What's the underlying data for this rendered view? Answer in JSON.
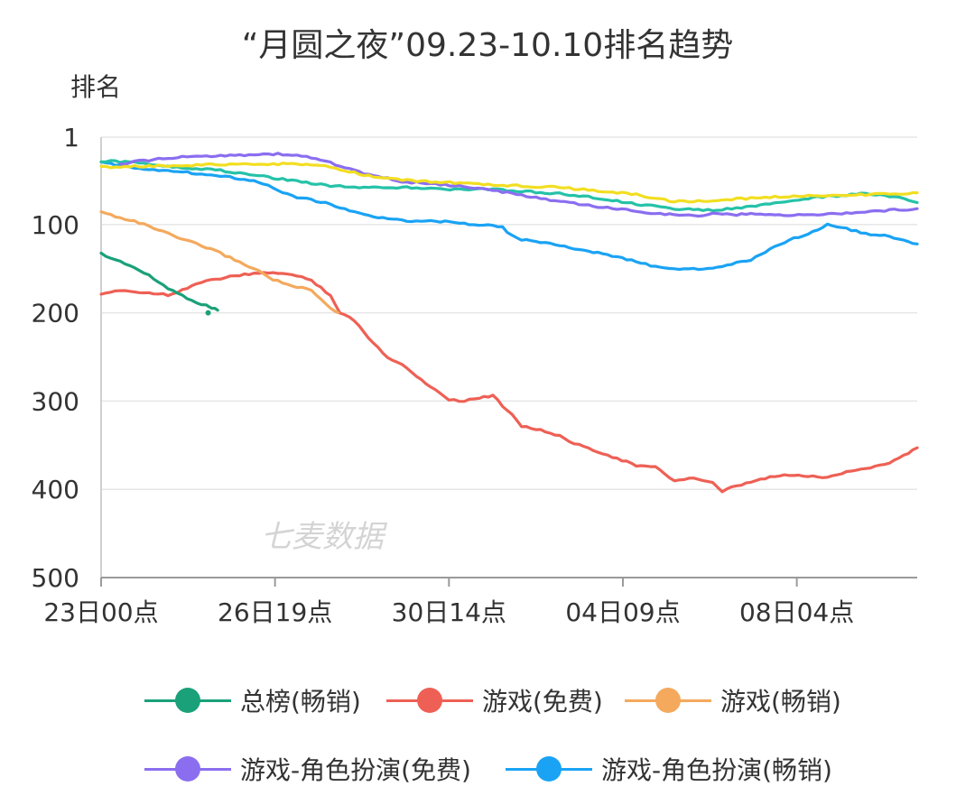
{
  "chart_data": {
    "type": "line",
    "title": "“月圆之夜”09.23-10.10排名趋势",
    "ylabel": "排名",
    "xlabel": "",
    "y_reversed": true,
    "ylim": [
      1,
      500
    ],
    "y_ticks": [
      1,
      100,
      200,
      300,
      400,
      500
    ],
    "x_ticks": [
      "23日00点",
      "26日19点",
      "30日14点",
      "04日09点",
      "08日04点"
    ],
    "x_tick_positions_hours": [
      0,
      91,
      182,
      273,
      364
    ],
    "x_range_hours": [
      0,
      427
    ],
    "grid": true,
    "legend_position": "bottom",
    "watermark": "七麦数据",
    "series": [
      {
        "name": "总榜(畅销)",
        "color": "#1aa179",
        "points": [
          [
            0,
            133
          ],
          [
            5,
            138
          ],
          [
            10,
            142
          ],
          [
            15,
            146
          ],
          [
            20,
            152
          ],
          [
            25,
            158
          ],
          [
            30,
            165
          ],
          [
            35,
            172
          ],
          [
            40,
            178
          ],
          [
            45,
            183
          ],
          [
            50,
            188
          ],
          [
            55,
            192
          ],
          [
            58,
            194
          ],
          [
            61,
            197
          ]
        ],
        "extra_points": [
          [
            56,
            200
          ]
        ]
      },
      {
        "name": "游戏(免费)",
        "color": "#ee6055",
        "points": [
          [
            0,
            180
          ],
          [
            10,
            174
          ],
          [
            20,
            177
          ],
          [
            30,
            178
          ],
          [
            35,
            180
          ],
          [
            40,
            176
          ],
          [
            50,
            167
          ],
          [
            60,
            162
          ],
          [
            70,
            158
          ],
          [
            80,
            156
          ],
          [
            90,
            154
          ],
          [
            100,
            157
          ],
          [
            110,
            163
          ],
          [
            120,
            180
          ],
          [
            125,
            200
          ],
          [
            130,
            205
          ],
          [
            135,
            215
          ],
          [
            140,
            228
          ],
          [
            145,
            240
          ],
          [
            150,
            250
          ],
          [
            155,
            256
          ],
          [
            160,
            262
          ],
          [
            165,
            272
          ],
          [
            170,
            280
          ],
          [
            175,
            287
          ],
          [
            182,
            298
          ],
          [
            190,
            300
          ],
          [
            198,
            296
          ],
          [
            205,
            294
          ],
          [
            210,
            305
          ],
          [
            215,
            315
          ],
          [
            220,
            328
          ],
          [
            230,
            333
          ],
          [
            240,
            340
          ],
          [
            250,
            350
          ],
          [
            260,
            357
          ],
          [
            270,
            365
          ],
          [
            280,
            373
          ],
          [
            290,
            375
          ],
          [
            295,
            383
          ],
          [
            300,
            390
          ],
          [
            310,
            387
          ],
          [
            320,
            393
          ],
          [
            325,
            403
          ],
          [
            330,
            398
          ],
          [
            340,
            392
          ],
          [
            350,
            386
          ],
          [
            360,
            384
          ],
          [
            370,
            385
          ],
          [
            380,
            387
          ],
          [
            385,
            383
          ],
          [
            390,
            380
          ],
          [
            400,
            376
          ],
          [
            410,
            372
          ],
          [
            420,
            362
          ],
          [
            427,
            353
          ]
        ]
      },
      {
        "name": "游戏(畅销)",
        "color": "#f4a95d",
        "points": [
          [
            0,
            86
          ],
          [
            10,
            92
          ],
          [
            20,
            98
          ],
          [
            30,
            106
          ],
          [
            40,
            115
          ],
          [
            50,
            122
          ],
          [
            60,
            130
          ],
          [
            70,
            140
          ],
          [
            80,
            150
          ],
          [
            90,
            162
          ],
          [
            100,
            170
          ],
          [
            105,
            172
          ],
          [
            110,
            175
          ],
          [
            115,
            185
          ],
          [
            120,
            195
          ],
          [
            124,
            200
          ]
        ]
      },
      {
        "name": "游戏-角色扮演(免费)",
        "color": "#8b6ef0",
        "points": [
          [
            10,
            32
          ],
          [
            20,
            28
          ],
          [
            30,
            26
          ],
          [
            40,
            24
          ],
          [
            50,
            23
          ],
          [
            60,
            22
          ],
          [
            70,
            21
          ],
          [
            80,
            21
          ],
          [
            90,
            20
          ],
          [
            100,
            21
          ],
          [
            110,
            24
          ],
          [
            120,
            30
          ],
          [
            130,
            37
          ],
          [
            140,
            44
          ],
          [
            150,
            48
          ],
          [
            160,
            52
          ],
          [
            170,
            53
          ],
          [
            180,
            55
          ],
          [
            190,
            57
          ],
          [
            200,
            60
          ],
          [
            210,
            63
          ],
          [
            220,
            67
          ],
          [
            230,
            70
          ],
          [
            240,
            74
          ],
          [
            250,
            77
          ],
          [
            260,
            80
          ],
          [
            270,
            82
          ],
          [
            280,
            85
          ],
          [
            290,
            87
          ],
          [
            300,
            89
          ],
          [
            310,
            90
          ],
          [
            320,
            88
          ],
          [
            330,
            89
          ],
          [
            340,
            88
          ],
          [
            350,
            88
          ],
          [
            360,
            90
          ],
          [
            370,
            89
          ],
          [
            380,
            88
          ],
          [
            390,
            87
          ],
          [
            400,
            86
          ],
          [
            410,
            84
          ],
          [
            420,
            83
          ],
          [
            427,
            82
          ]
        ]
      },
      {
        "name": "游戏-角色扮演(畅销)",
        "color": "#1aa3f4",
        "points": [
          [
            0,
            30
          ],
          [
            20,
            36
          ],
          [
            40,
            40
          ],
          [
            60,
            44
          ],
          [
            80,
            50
          ],
          [
            90,
            58
          ],
          [
            100,
            68
          ],
          [
            110,
            72
          ],
          [
            120,
            77
          ],
          [
            130,
            84
          ],
          [
            140,
            90
          ],
          [
            150,
            94
          ],
          [
            160,
            96
          ],
          [
            170,
            95
          ],
          [
            180,
            97
          ],
          [
            190,
            99
          ],
          [
            200,
            100
          ],
          [
            210,
            103
          ],
          [
            215,
            113
          ],
          [
            220,
            117
          ],
          [
            230,
            120
          ],
          [
            240,
            124
          ],
          [
            250,
            128
          ],
          [
            260,
            132
          ],
          [
            270,
            137
          ],
          [
            280,
            142
          ],
          [
            290,
            148
          ],
          [
            300,
            151
          ],
          [
            310,
            150
          ],
          [
            320,
            150
          ],
          [
            330,
            145
          ],
          [
            340,
            140
          ],
          [
            350,
            128
          ],
          [
            360,
            118
          ],
          [
            370,
            110
          ],
          [
            380,
            100
          ],
          [
            390,
            105
          ],
          [
            400,
            110
          ],
          [
            410,
            113
          ],
          [
            420,
            118
          ],
          [
            427,
            122
          ]
        ]
      },
      {
        "name": "",
        "color": "#25c2a8",
        "legend": false,
        "points": [
          [
            0,
            28
          ],
          [
            20,
            30
          ],
          [
            40,
            35
          ],
          [
            60,
            38
          ],
          [
            80,
            44
          ],
          [
            100,
            50
          ],
          [
            120,
            56
          ],
          [
            140,
            58
          ],
          [
            160,
            58
          ],
          [
            180,
            60
          ],
          [
            200,
            60
          ],
          [
            220,
            62
          ],
          [
            240,
            65
          ],
          [
            260,
            70
          ],
          [
            280,
            77
          ],
          [
            300,
            82
          ],
          [
            320,
            84
          ],
          [
            340,
            80
          ],
          [
            360,
            73
          ],
          [
            380,
            68
          ],
          [
            400,
            65
          ],
          [
            420,
            70
          ],
          [
            427,
            75
          ]
        ]
      },
      {
        "name": "",
        "color": "#f2de21",
        "legend": false,
        "points": [
          [
            0,
            35
          ],
          [
            20,
            34
          ],
          [
            40,
            33
          ],
          [
            60,
            32
          ],
          [
            80,
            32
          ],
          [
            100,
            31
          ],
          [
            120,
            35
          ],
          [
            140,
            45
          ],
          [
            160,
            50
          ],
          [
            180,
            52
          ],
          [
            200,
            55
          ],
          [
            220,
            56
          ],
          [
            240,
            58
          ],
          [
            260,
            62
          ],
          [
            280,
            66
          ],
          [
            300,
            74
          ],
          [
            320,
            73
          ],
          [
            340,
            70
          ],
          [
            360,
            68
          ],
          [
            380,
            67
          ],
          [
            400,
            66
          ],
          [
            420,
            65
          ],
          [
            427,
            64
          ]
        ]
      }
    ]
  }
}
